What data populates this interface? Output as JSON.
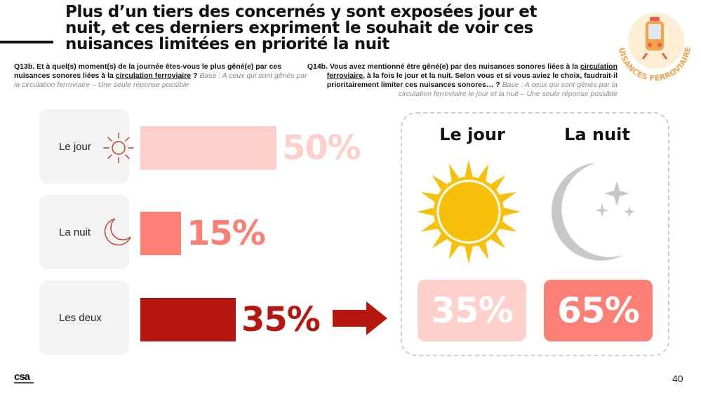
{
  "title": "Plus d’un tiers des concernés y sont exposées jour et nuit, et ces derniers expriment le souhait de voir ces nuisances limitées en priorité la nuit",
  "badge_text": "NUISANCES FERROVIAIRES",
  "question_left": {
    "code": "Q13b.",
    "text_before": "Et à quel(s) moment(s) de la journée êtes-vous le plus gêné(e) par ces nuisances sonores liées à la",
    "underlined": "circulation ferroviaire",
    "text_after": "?",
    "base": "Base : A ceux qui sont gênés par la circulation ferroviaire – Une seule réponse possible"
  },
  "question_right": {
    "code": "Q14b.",
    "text_before": "Vous avez mentionné être gêné(e) par des nuisances sonores liées à la",
    "underlined": "circulation ferroviaire",
    "text_after": ", à la fois le jour et la nuit. Selon vous et si vous aviez le choix, faudrait-il prioritairement limiter ces nuisances sonores… ?",
    "base": "Base : A ceux qui sont gênés par la circulation ferroviaire le jour et la nuit – Une seule réponse possible"
  },
  "chart_data": [
    {
      "type": "bar",
      "orientation": "horizontal",
      "categories": [
        "Le jour",
        "La nuit",
        "Les deux"
      ],
      "values": [
        50,
        15,
        35
      ],
      "labels": [
        "50%",
        "15%",
        "35%"
      ],
      "unit": "%",
      "colors": [
        "#fdd0cc",
        "#fb7f74",
        "#b5170e"
      ],
      "label_colors": [
        "#fdd0cc",
        "#fb7f74",
        "#b5170e"
      ],
      "xlim": [
        0,
        50
      ]
    },
    {
      "type": "table",
      "categories": [
        "Le jour",
        "La nuit"
      ],
      "values": [
        35,
        65
      ],
      "labels": [
        "35%",
        "65%"
      ],
      "unit": "%",
      "colors": [
        "#fdd0cc",
        "#fb7f74"
      ]
    }
  ],
  "icons": {
    "day_small": "sun-outline-icon",
    "night_small": "crescent-moon-outline-icon",
    "arrow": "right-arrow-icon",
    "day_large": "sun-icon",
    "night_large": "moon-stars-icon",
    "badge": "train-icon"
  },
  "accent_dark": "#b5170e",
  "sun_color": "#f7c10a",
  "moon_color": "#c8c8c8",
  "footer": {
    "logo": "csa",
    "page_number": "40"
  }
}
